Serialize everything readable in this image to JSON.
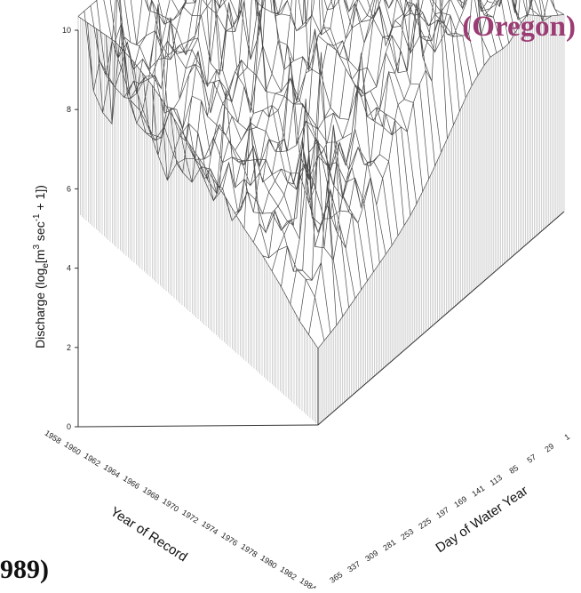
{
  "region_label": "(Oregon)",
  "citation": "989)",
  "chart_data": {
    "type": "surface",
    "ylabel": "Discharge (log_e[m^3 sec^-1 + 1])",
    "ylabel_parts": {
      "main": "Discharge (log",
      "sub": "e",
      "mid": "[m",
      "sup1": "3",
      "unit": "sec",
      "sup2": "-1",
      "tail": " + 1])"
    },
    "xlabel": "Year of Record",
    "zlabel": "Day of Water Year",
    "ylim": [
      0,
      10
    ],
    "yticks": [
      "0",
      "2",
      "4",
      "6",
      "8",
      "10"
    ],
    "year_ticks": [
      "1958",
      "1960",
      "1962",
      "1964",
      "1966",
      "1968",
      "1970",
      "1972",
      "1974",
      "1976",
      "1978",
      "1980",
      "1982",
      "1984"
    ],
    "day_ticks": [
      "1",
      "29",
      "57",
      "85",
      "113",
      "141",
      "169",
      "197",
      "225",
      "253",
      "281",
      "309",
      "337",
      "365"
    ],
    "years": [
      1958,
      1960,
      1962,
      1964,
      1966,
      1968,
      1970,
      1972,
      1974,
      1976,
      1978,
      1980,
      1982,
      1984
    ],
    "days": [
      1,
      29,
      57,
      85,
      113,
      141,
      169,
      197,
      225,
      253,
      281,
      309,
      337,
      365
    ],
    "front_edge_year_profile": [
      5.4,
      5.5,
      5.6,
      5.5,
      5.3,
      5.0,
      4.6,
      4.3,
      4.0,
      3.6,
      3.3,
      2.9,
      2.4,
      2.1
    ],
    "front_edge_day_profile": [
      5.4,
      5.8,
      6.3,
      5.9,
      6.0,
      5.6,
      4.9,
      4.2,
      3.6,
      3.2,
      2.9,
      2.6,
      2.3,
      2.1
    ],
    "peak_discharge": 10.2
  }
}
